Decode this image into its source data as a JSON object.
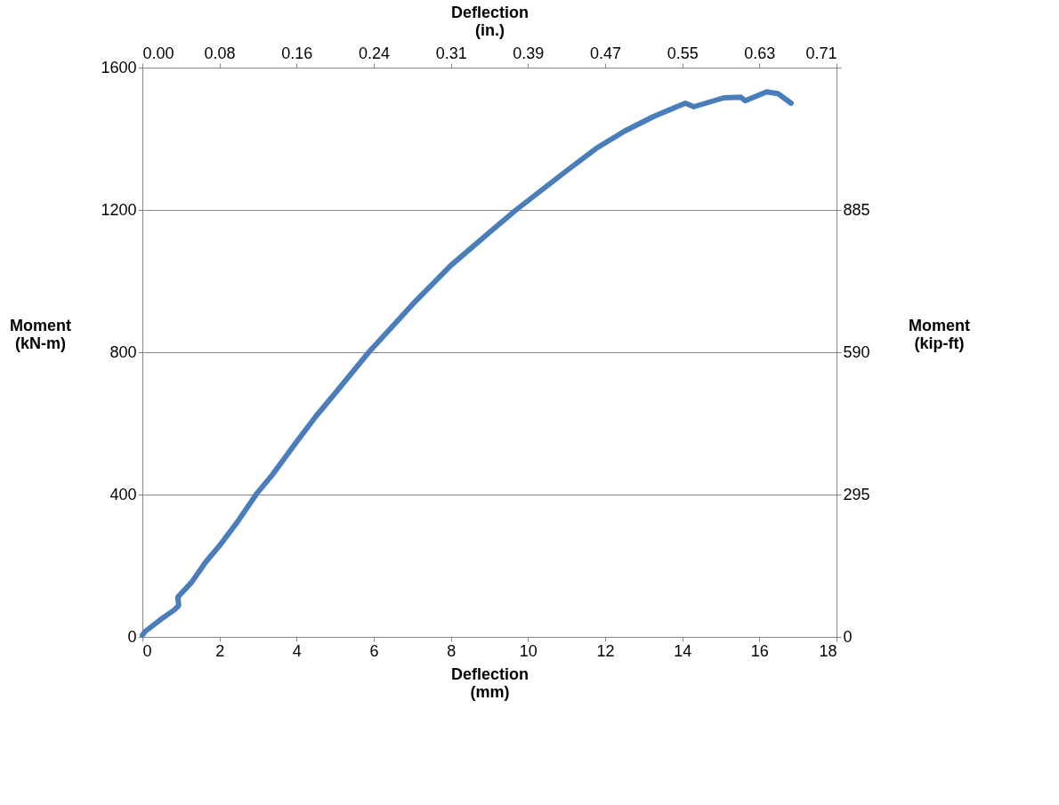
{
  "chart_data": {
    "type": "line",
    "xlabel": "Deflection\n(mm)",
    "x2label": "Deflection\n(in.)",
    "ylabel": "Moment\n(kN-m)",
    "y2label": "Moment\n(kip-ft)",
    "xlim": [
      0,
      18
    ],
    "xticks": [
      0,
      2,
      4,
      6,
      8,
      10,
      12,
      14,
      16,
      18
    ],
    "ylim": [
      0,
      1600
    ],
    "yticks": [
      0,
      400,
      800,
      1200,
      1600
    ],
    "x2lim": [
      0,
      0.7087
    ],
    "x2ticks": [
      {
        "value": 0,
        "label": "0.00"
      },
      {
        "value": 0.0787,
        "label": "0.08"
      },
      {
        "value": 0.1575,
        "label": "0.16"
      },
      {
        "value": 0.2362,
        "label": "0.24"
      },
      {
        "value": 0.315,
        "label": "0.31"
      },
      {
        "value": 0.3937,
        "label": "0.39"
      },
      {
        "value": 0.4724,
        "label": "0.47"
      },
      {
        "value": 0.5512,
        "label": "0.55"
      },
      {
        "value": 0.6299,
        "label": "0.63"
      },
      {
        "value": 0.7087,
        "label": "0.71"
      }
    ],
    "y2lim": [
      0,
      1180
    ],
    "y2ticks": [
      0,
      295,
      590,
      885,
      {
        "value": 1180,
        "label": null
      }
    ],
    "grid": "y",
    "marker": "none",
    "line_style": "solid",
    "series": [
      {
        "color": "#4a7ebb",
        "x": [
          0,
          0.07,
          0.5,
          0.83,
          0.94,
          0.92,
          1.28,
          1.64,
          2.02,
          2.47,
          2.96,
          3.36,
          3.97,
          4.5,
          5.0,
          5.87,
          7.0,
          8.0,
          9.0,
          9.69,
          11.0,
          11.77,
          12.51,
          13.27,
          14.08,
          14.3,
          15.07,
          15.52,
          15.63,
          16.19,
          16.48,
          16.82
        ],
        "values": [
          5,
          15,
          51,
          76,
          88,
          112,
          154,
          210,
          259,
          324,
          402,
          454,
          544,
          620,
          685,
          800,
          934,
          1044,
          1137,
          1200,
          1310,
          1373,
          1422,
          1463,
          1500,
          1490,
          1515,
          1517,
          1507,
          1532,
          1527,
          1500
        ]
      }
    ]
  }
}
